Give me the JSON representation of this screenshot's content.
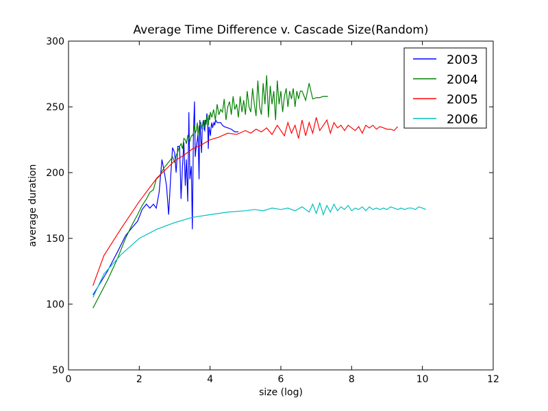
{
  "chart_data": {
    "type": "line",
    "title": "Average Time Difference v. Cascade Size(Random)",
    "xlabel": "size (log)",
    "ylabel": "average duration",
    "xlim": [
      0,
      12
    ],
    "ylim": [
      50,
      300
    ],
    "xticks": [
      "0",
      "2",
      "4",
      "6",
      "8",
      "10",
      "12"
    ],
    "yticks": [
      "50",
      "100",
      "150",
      "200",
      "250",
      "300"
    ],
    "grid": false,
    "legend_position": "top-right",
    "series": [
      {
        "name": "2003",
        "color": "#0000ff",
        "x": [
          0.69,
          1.1,
          1.39,
          1.61,
          1.79,
          1.95,
          2.08,
          2.2,
          2.3,
          2.4,
          2.48,
          2.56,
          2.64,
          2.71,
          2.77,
          2.83,
          2.89,
          2.94,
          3.0,
          3.04,
          3.09,
          3.14,
          3.18,
          3.22,
          3.26,
          3.3,
          3.33,
          3.37,
          3.4,
          3.43,
          3.47,
          3.5,
          3.53,
          3.56,
          3.58,
          3.61,
          3.64,
          3.66,
          3.69,
          3.71,
          3.74,
          3.76,
          3.78,
          3.81,
          3.83,
          3.85,
          3.87,
          3.89,
          3.91,
          3.93,
          3.95,
          3.97,
          3.99,
          4.01,
          4.03,
          4.05,
          4.07,
          4.09,
          4.11,
          4.13,
          4.16,
          4.2,
          4.25,
          4.3,
          4.35,
          4.4,
          4.5,
          4.6,
          4.7,
          4.8
        ],
        "y": [
          107,
          125,
          140,
          152,
          158,
          163,
          172,
          176,
          173,
          176,
          173,
          185,
          210,
          200,
          190,
          168,
          198,
          219,
          215,
          200,
          220,
          220,
          180,
          205,
          223,
          190,
          210,
          178,
          246,
          195,
          205,
          157,
          230,
          254,
          212,
          220,
          225,
          230,
          195,
          240,
          225,
          215,
          235,
          240,
          233,
          232,
          240,
          238,
          245,
          240,
          218,
          235,
          232,
          228,
          235,
          238,
          234,
          236,
          238,
          236,
          240,
          238,
          238,
          238,
          236,
          235,
          234,
          233,
          231,
          231
        ]
      },
      {
        "name": "2004",
        "color": "#008000",
        "x": [
          0.69,
          1.1,
          1.39,
          1.61,
          1.79,
          1.95,
          2.08,
          2.2,
          2.3,
          2.4,
          2.48,
          2.56,
          2.64,
          2.71,
          2.77,
          2.83,
          2.89,
          2.94,
          3.0,
          3.04,
          3.09,
          3.14,
          3.18,
          3.22,
          3.26,
          3.3,
          3.33,
          3.37,
          3.4,
          3.43,
          3.47,
          3.5,
          3.53,
          3.56,
          3.58,
          3.61,
          3.64,
          3.66,
          3.69,
          3.71,
          3.74,
          3.76,
          3.78,
          3.81,
          3.83,
          3.85,
          3.87,
          3.89,
          3.91,
          3.93,
          3.95,
          3.97,
          3.99,
          4.01,
          4.05,
          4.1,
          4.15,
          4.2,
          4.25,
          4.3,
          4.35,
          4.4,
          4.45,
          4.5,
          4.55,
          4.6,
          4.65,
          4.7,
          4.75,
          4.8,
          4.85,
          4.9,
          4.95,
          5.0,
          5.05,
          5.1,
          5.15,
          5.2,
          5.25,
          5.3,
          5.35,
          5.4,
          5.45,
          5.5,
          5.55,
          5.6,
          5.65,
          5.7,
          5.75,
          5.8,
          5.85,
          5.9,
          5.95,
          6.0,
          6.05,
          6.1,
          6.15,
          6.2,
          6.25,
          6.3,
          6.35,
          6.4,
          6.45,
          6.5,
          6.55,
          6.6,
          6.7,
          6.8,
          6.9,
          7.0,
          7.1,
          7.2,
          7.33
        ],
        "y": [
          97,
          118,
          135,
          150,
          160,
          168,
          175,
          180,
          185,
          187,
          195,
          197,
          201,
          204,
          206,
          208,
          210,
          212,
          208,
          213,
          216,
          220,
          222,
          218,
          226,
          225,
          222,
          228,
          226,
          224,
          228,
          228,
          230,
          236,
          230,
          232,
          238,
          228,
          235,
          237,
          238,
          233,
          236,
          237,
          234,
          240,
          238,
          237,
          243,
          239,
          236,
          244,
          240,
          246,
          242,
          248,
          240,
          252,
          244,
          248,
          246,
          256,
          240,
          250,
          254,
          244,
          258,
          248,
          252,
          242,
          258,
          246,
          255,
          244,
          262,
          250,
          246,
          264,
          252,
          243,
          270,
          250,
          244,
          268,
          252,
          274,
          242,
          266,
          252,
          262,
          240,
          270,
          252,
          262,
          246,
          258,
          264,
          250,
          262,
          256,
          264,
          250,
          262,
          256,
          262,
          262,
          255,
          268,
          256,
          257,
          257,
          258,
          258
        ]
      },
      {
        "name": "2005",
        "color": "#ff0000",
        "x": [
          0.69,
          1.0,
          1.5,
          2.0,
          2.5,
          3.0,
          3.25,
          3.5,
          3.75,
          4.0,
          4.25,
          4.5,
          4.75,
          5.0,
          5.15,
          5.3,
          5.45,
          5.6,
          5.75,
          5.9,
          6.0,
          6.1,
          6.2,
          6.3,
          6.4,
          6.5,
          6.6,
          6.7,
          6.8,
          6.9,
          7.0,
          7.1,
          7.2,
          7.3,
          7.4,
          7.5,
          7.6,
          7.7,
          7.8,
          7.9,
          8.0,
          8.1,
          8.2,
          8.3,
          8.4,
          8.5,
          8.6,
          8.7,
          8.8,
          8.9,
          9.0,
          9.1,
          9.2,
          9.3
        ],
        "y": [
          114,
          137,
          158,
          178,
          196,
          209,
          213,
          218,
          221,
          225,
          227,
          230,
          229,
          232,
          230,
          233,
          231,
          234,
          229,
          236,
          232,
          228,
          238,
          230,
          236,
          226,
          240,
          228,
          238,
          230,
          242,
          232,
          236,
          240,
          230,
          238,
          234,
          236,
          232,
          236,
          234,
          232,
          235,
          230,
          236,
          234,
          236,
          233,
          235,
          234,
          233,
          233,
          232,
          235
        ]
      },
      {
        "name": "2006",
        "color": "#00bfbf",
        "x": [
          0.69,
          1.0,
          1.5,
          2.0,
          2.5,
          3.0,
          3.5,
          4.0,
          4.5,
          5.0,
          5.25,
          5.5,
          5.75,
          6.0,
          6.2,
          6.4,
          6.6,
          6.8,
          6.9,
          7.0,
          7.1,
          7.2,
          7.3,
          7.4,
          7.5,
          7.6,
          7.7,
          7.8,
          7.9,
          8.0,
          8.1,
          8.2,
          8.3,
          8.4,
          8.5,
          8.6,
          8.7,
          8.8,
          8.9,
          9.0,
          9.1,
          9.2,
          9.3,
          9.4,
          9.5,
          9.6,
          9.7,
          9.8,
          9.9,
          10.0,
          10.1
        ],
        "y": [
          105,
          123,
          138,
          150,
          157,
          162,
          166,
          168,
          170,
          171,
          172,
          171,
          173,
          172,
          173,
          171,
          174,
          170,
          176,
          169,
          177,
          168,
          175,
          170,
          176,
          171,
          174,
          172,
          175,
          171,
          173,
          172,
          174,
          171,
          174,
          172,
          173,
          172,
          173,
          172,
          174,
          173,
          172,
          173,
          172,
          173,
          173,
          172,
          174,
          173,
          172
        ]
      }
    ]
  }
}
